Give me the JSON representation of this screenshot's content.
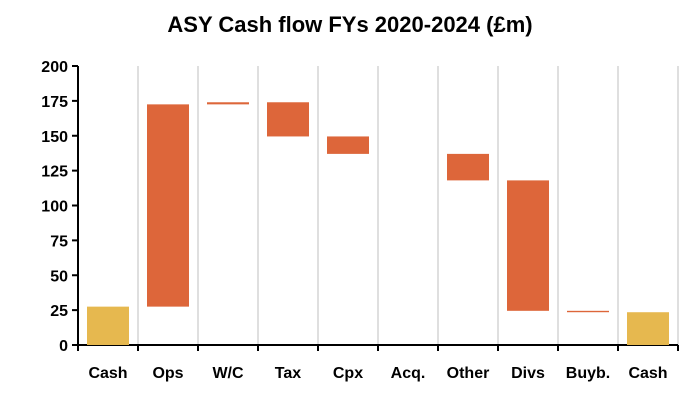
{
  "chart_data": {
    "type": "bar",
    "subtype": "waterfall",
    "title": "ASY Cash flow FYs 2020-2024 (£m)",
    "xlabel": "",
    "ylabel": "",
    "ylim": [
      0,
      200
    ],
    "yticks": [
      0,
      25,
      50,
      75,
      100,
      125,
      150,
      175,
      200
    ],
    "grid": "vertical",
    "legend": "none",
    "categories": [
      "Cash",
      "Ops",
      "W/C",
      "Tax",
      "Cpx",
      "Acq.",
      "Other",
      "Divs",
      "Buyb.",
      "Cash"
    ],
    "bars": [
      {
        "category": "Cash",
        "low": 0,
        "high": 27.5,
        "kind": "total"
      },
      {
        "category": "Ops",
        "low": 27.5,
        "high": 172.5,
        "kind": "change"
      },
      {
        "category": "W/C",
        "low": 172.5,
        "high": 174,
        "kind": "change"
      },
      {
        "category": "Tax",
        "low": 149.5,
        "high": 174,
        "kind": "change"
      },
      {
        "category": "Cpx",
        "low": 137,
        "high": 149.5,
        "kind": "change"
      },
      {
        "category": "Acq.",
        "low": 137,
        "high": 137,
        "kind": "change"
      },
      {
        "category": "Other",
        "low": 118,
        "high": 137,
        "kind": "change"
      },
      {
        "category": "Divs",
        "low": 24.5,
        "high": 118,
        "kind": "change"
      },
      {
        "category": "Buyb.",
        "low": 23.5,
        "high": 24.5,
        "kind": "change"
      },
      {
        "category": "Cash",
        "low": 0,
        "high": 23.5,
        "kind": "total"
      }
    ],
    "colors": {
      "total": "#e6b84f",
      "change": "#dd663a",
      "axis": "#000000",
      "grid": "#bfbfbf"
    }
  }
}
